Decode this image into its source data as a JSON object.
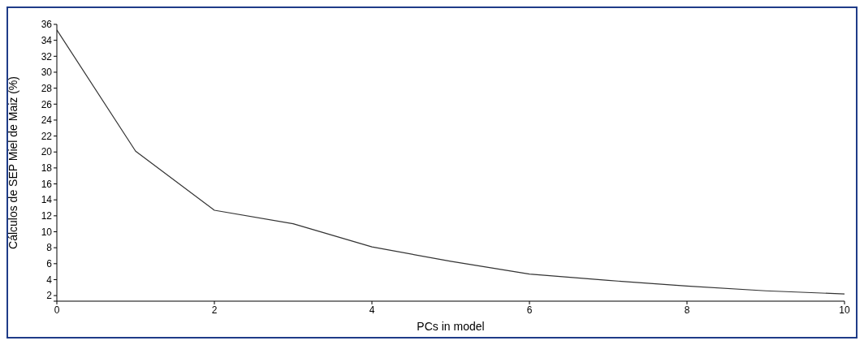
{
  "chart_data": {
    "type": "line",
    "xlabel": "PCs in model",
    "ylabel": "Cálculos de SEP Miel de Maiz (%)",
    "x": [
      0,
      1,
      2,
      3,
      4,
      5,
      6,
      7,
      8,
      9,
      10
    ],
    "series": [
      {
        "color": "#333333",
        "values": [
          35.3,
          20.1,
          12.7,
          11,
          8.1,
          6.3,
          4.7,
          3.9,
          3.2,
          2.6,
          2.2
        ]
      }
    ],
    "xlim": [
      0,
      10
    ],
    "xticks": [
      0,
      2,
      4,
      6,
      8,
      10
    ],
    "ylim": [
      1.3,
      36
    ],
    "yticks": [
      {
        "value": 1.3,
        "label": null
      },
      2,
      4,
      6,
      8,
      10,
      12,
      14,
      16,
      18,
      20,
      22,
      24,
      26,
      28,
      30,
      32,
      34,
      36
    ],
    "grid": false,
    "legend": false,
    "marker": "none",
    "line_style": "solid"
  }
}
